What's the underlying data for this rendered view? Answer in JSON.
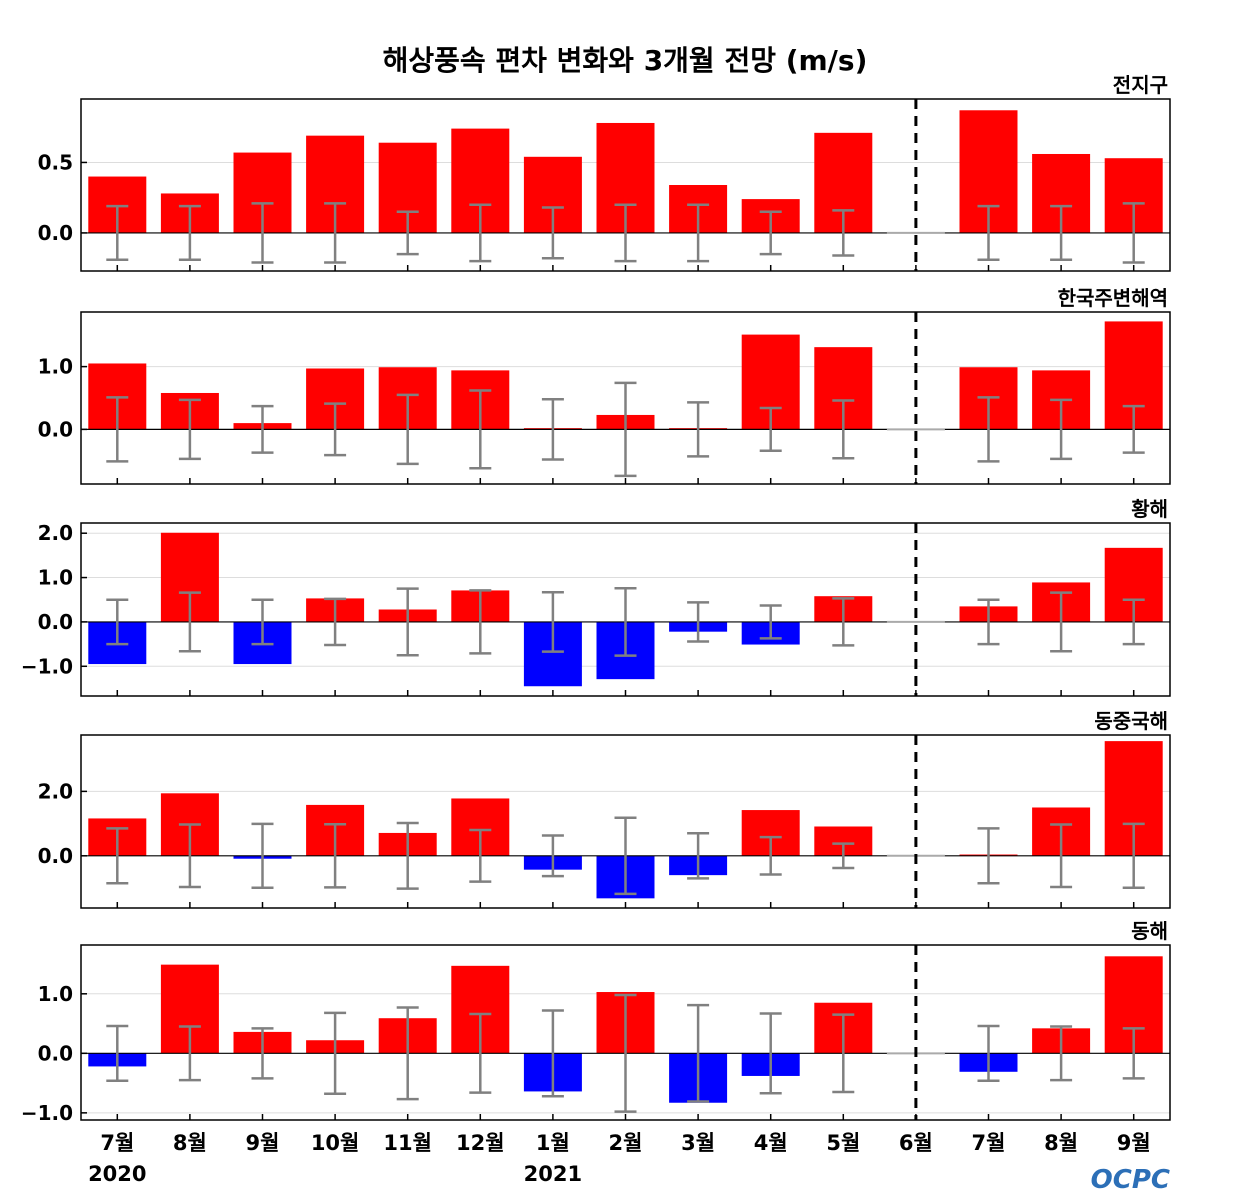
{
  "chart_data": {
    "type": "bar",
    "title": "해상풍속 편차 변화와 3개월 전망 (m/s)",
    "categories": [
      "7월",
      "8월",
      "9월",
      "10월",
      "11월",
      "12월",
      "1월",
      "2월",
      "3월",
      "4월",
      "5월",
      "6월",
      "7월",
      "8월",
      "9월"
    ],
    "year_labels": [
      {
        "index": 0,
        "label": "2020"
      },
      {
        "index": 6,
        "label": "2021"
      }
    ],
    "divider_after_index": 11,
    "positive_color": "#ff0000",
    "negative_color": "#0000ff",
    "errorbar_color": "#808080",
    "logo": "OCPC",
    "panels": [
      {
        "name": "전지구",
        "ylim": [
          -0.27,
          0.95
        ],
        "yticks": [
          0.0,
          0.5
        ],
        "ytick_labels": [
          "0.0",
          "0.5"
        ],
        "values": [
          0.4,
          0.28,
          0.57,
          0.69,
          0.64,
          0.74,
          0.54,
          0.78,
          0.34,
          0.24,
          0.71,
          0.0,
          0.87,
          0.56,
          0.53
        ],
        "error": [
          0.19,
          0.19,
          0.21,
          0.21,
          0.15,
          0.2,
          0.18,
          0.2,
          0.2,
          0.15,
          0.16,
          0.0,
          0.19,
          0.19,
          0.21
        ]
      },
      {
        "name": "한국주변해역",
        "ylim": [
          -0.87,
          1.87
        ],
        "yticks": [
          0.0,
          1.0
        ],
        "ytick_labels": [
          "0.0",
          "1.0"
        ],
        "values": [
          1.05,
          0.58,
          0.1,
          0.97,
          0.99,
          0.94,
          0.02,
          0.23,
          0.02,
          1.51,
          1.31,
          0.0,
          0.99,
          0.94,
          1.72
        ],
        "error": [
          0.51,
          0.47,
          0.37,
          0.41,
          0.55,
          0.62,
          0.48,
          0.74,
          0.43,
          0.34,
          0.46,
          0.0,
          0.51,
          0.47,
          0.37
        ]
      },
      {
        "name": "황해",
        "ylim": [
          -1.67,
          2.23
        ],
        "yticks": [
          -1.0,
          0.0,
          1.0,
          2.0
        ],
        "ytick_labels": [
          "−1.0",
          "0.0",
          "1.0",
          "2.0"
        ],
        "values": [
          -0.95,
          2.01,
          -0.95,
          0.53,
          0.28,
          0.71,
          -1.45,
          -1.29,
          -0.22,
          -0.51,
          0.58,
          0.0,
          0.35,
          0.89,
          1.67
        ],
        "error": [
          0.5,
          0.66,
          0.5,
          0.52,
          0.75,
          0.71,
          0.67,
          0.76,
          0.44,
          0.37,
          0.53,
          0.0,
          0.5,
          0.66,
          0.5
        ]
      },
      {
        "name": "동중국해",
        "ylim": [
          -1.62,
          3.75
        ],
        "yticks": [
          0.0,
          2.0
        ],
        "ytick_labels": [
          "0.0",
          "2.0"
        ],
        "values": [
          1.16,
          1.94,
          -0.09,
          1.58,
          0.71,
          1.78,
          -0.43,
          -1.32,
          -0.6,
          1.42,
          0.91,
          0.0,
          0.04,
          1.5,
          3.56
        ],
        "error": [
          0.85,
          0.97,
          0.99,
          0.98,
          1.02,
          0.8,
          0.63,
          1.18,
          0.7,
          0.58,
          0.38,
          0.0,
          0.85,
          0.97,
          0.99
        ]
      },
      {
        "name": "동해",
        "ylim": [
          -1.12,
          1.82
        ],
        "yticks": [
          -1.0,
          0.0,
          1.0
        ],
        "ytick_labels": [
          "−1.0",
          "0.0",
          "1.0"
        ],
        "values": [
          -0.22,
          1.49,
          0.36,
          0.22,
          0.59,
          1.47,
          -0.64,
          1.03,
          -0.83,
          -0.38,
          0.85,
          0.0,
          -0.31,
          0.42,
          1.63
        ],
        "error": [
          0.46,
          0.45,
          0.42,
          0.68,
          0.77,
          0.66,
          0.72,
          0.98,
          0.81,
          0.67,
          0.65,
          0.0,
          0.46,
          0.45,
          0.42
        ]
      }
    ]
  }
}
